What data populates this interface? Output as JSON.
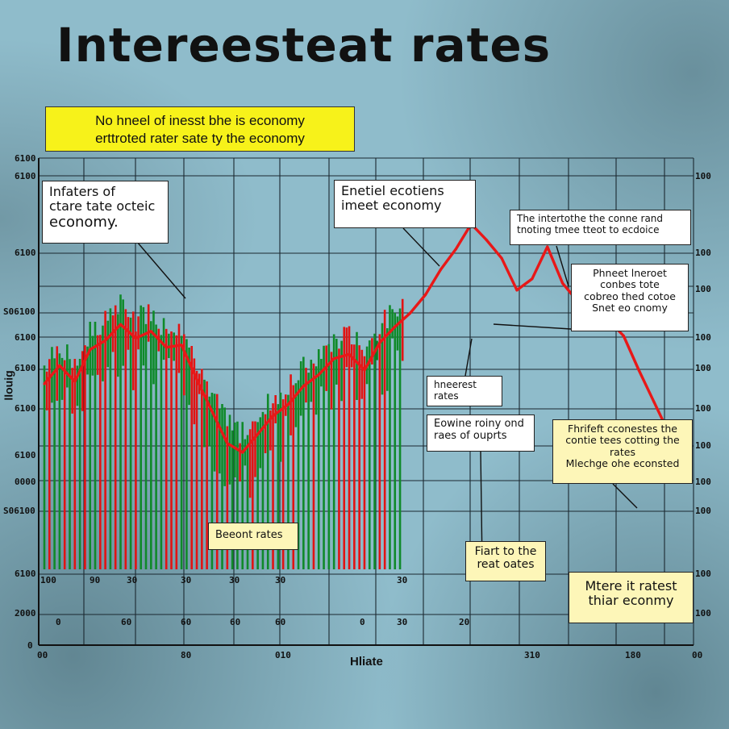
{
  "title": "Intereesteat rates",
  "subtitle_lines": [
    "No hneel of inesst bhe is economy",
    "erttroted rater sate ty the economy"
  ],
  "callouts": [
    {
      "id": "c1",
      "lines": [
        "Infaters of",
        "ctare tate octeic",
        "economy."
      ]
    },
    {
      "id": "c2",
      "lines": [
        "Enetiel ecotiens",
        "imeet economy"
      ]
    },
    {
      "id": "c3",
      "lines": [
        "The intertothe the conne rand",
        "tnoting tmee tteot to ecdoice"
      ]
    },
    {
      "id": "c4",
      "lines": [
        "Phneet lneroet",
        "conbes tote",
        "cobreo thed cotoe",
        "Snet eo cnomy"
      ]
    },
    {
      "id": "c5",
      "lines": [
        "hneerest",
        "rates"
      ]
    },
    {
      "id": "c6",
      "lines": [
        "Eowine roiny ond",
        "raes of ouprts"
      ]
    },
    {
      "id": "c7",
      "lines": [
        "Fhrifeft cconestes the",
        "contie tees cotting the",
        "rates",
        "Mlechge ohe econsted"
      ]
    },
    {
      "id": "c8",
      "lines": [
        "Beeont rates"
      ]
    },
    {
      "id": "c9",
      "lines": [
        "Fiart to the",
        "reat oates"
      ]
    },
    {
      "id": "c10",
      "lines": [
        "Mtere it ratest",
        "thiar econmy"
      ]
    }
  ],
  "y_axis_left_labels": [
    "6100",
    "6100",
    "6100",
    "S06100",
    "6100",
    "6100",
    "6100",
    "6100",
    "0000",
    "S06100",
    "6100",
    "2000",
    "0"
  ],
  "y_axis_left_title": "llouig",
  "y_axis_right_labels": [
    "100",
    "100",
    "100",
    "100",
    "100",
    "100",
    "100",
    "100",
    "100",
    "100",
    "100",
    "100",
    "100"
  ],
  "x_axis_labels_row1": [
    "100",
    "90",
    "30",
    "30",
    "30",
    "30",
    "30"
  ],
  "x_axis_labels_row2": [
    "0",
    "60",
    "60",
    "60",
    "60",
    "0",
    "30",
    "20"
  ],
  "x_axis_labels_row3": [
    "00",
    "80",
    "010",
    "310",
    "180",
    "00"
  ],
  "x_axis_title": "Hliate",
  "colors": {
    "up": "#0f8a2a",
    "down": "#e21313",
    "trend": "#e81818",
    "grid": "#1b2830",
    "subtitle_bg": "#f7f21a"
  },
  "chart_data": {
    "type": "line",
    "title": "Intereesteat rates",
    "xlabel": "Hliate",
    "ylabel": "llouig",
    "grid": true,
    "series": [
      {
        "values": [
          4.8,
          5.6,
          4.9,
          6.3,
          6.7,
          7.4,
          6.8,
          7.1,
          6.4,
          6.5,
          5.0,
          3.6,
          2.2,
          1.8,
          2.6,
          3.4,
          3.9,
          4.7,
          5.2,
          5.9,
          6.1,
          5.4,
          6.6,
          7.3,
          7.9,
          8.7,
          9.8,
          10.7,
          11.8,
          11.1,
          10.3,
          8.9,
          9.4,
          10.8,
          9.2,
          8.4,
          7.9,
          7.6,
          6.9,
          5.4,
          4.0,
          2.6
        ]
      }
    ]
  }
}
